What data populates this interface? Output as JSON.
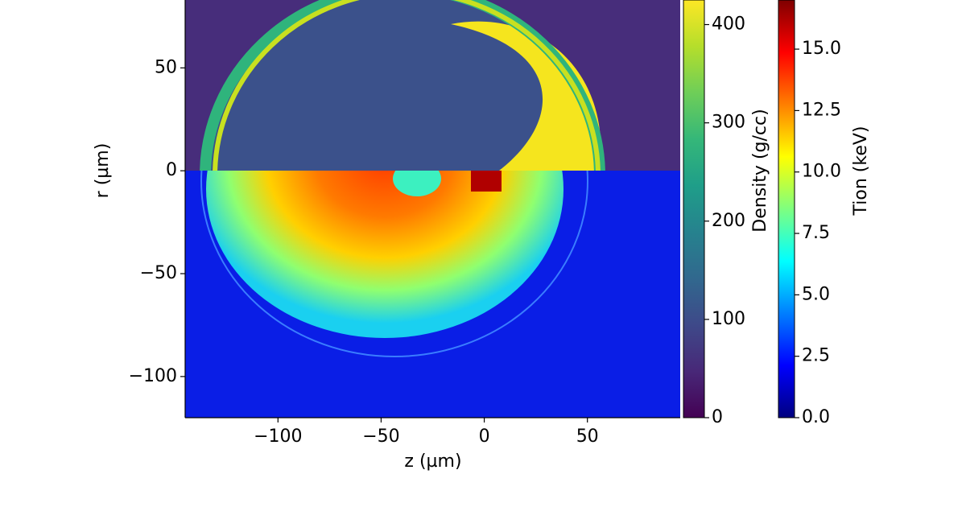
{
  "chart_data": {
    "type": "heatmap",
    "xlabel": "z (µm)",
    "ylabel": "r (µm)",
    "xlim": [
      -145,
      95
    ],
    "ylim": [
      -120,
      83
    ],
    "xticks": [
      {
        "value": -100,
        "label": "−100"
      },
      {
        "value": -50,
        "label": "−50"
      },
      0,
      50
    ],
    "yticks": [
      {
        "value": -100,
        "label": "−100"
      },
      {
        "value": -50,
        "label": "−50"
      },
      0,
      50
    ],
    "colorbars": [
      {
        "label": "Density (g/cc)",
        "colormap": "viridis",
        "lim": [
          0,
          425
        ],
        "ticks": [
          0,
          100,
          200,
          300,
          400
        ]
      },
      {
        "label": "Tion (keV)",
        "colormap": "jet",
        "lim": [
          0,
          17
        ],
        "ticks": [
          {
            "value": 0,
            "label": "0.0"
          },
          2.5,
          {
            "value": 5,
            "label": "5.0"
          },
          7.5,
          {
            "value": 10,
            "label": "10.0"
          },
          12.5,
          {
            "value": 15,
            "label": "15.0"
          }
        ]
      }
    ]
  }
}
